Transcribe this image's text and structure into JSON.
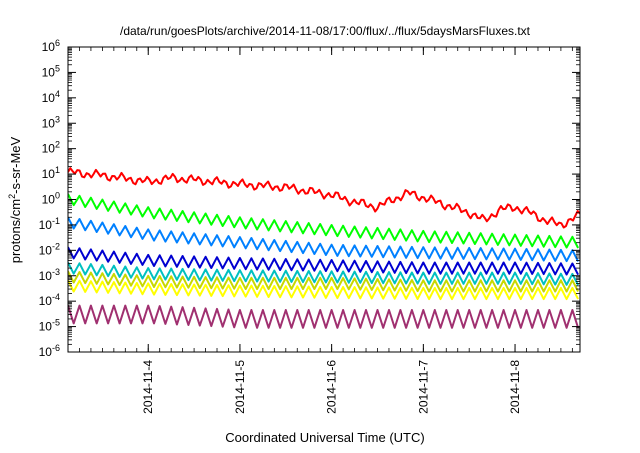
{
  "chart_data": {
    "type": "line",
    "title": "/data/run/goesPlots/archive/2014-11-08/17:00/flux/../flux/5daysMarsFluxes.txt",
    "xlabel": "Coordinated Universal Time (UTC)",
    "ylabel": {
      "pre": "protons/cm",
      "sup": "2",
      "post": "-s-sr-MeV"
    },
    "y_scale": "log",
    "ylim": [
      1e-06,
      1000000.0
    ],
    "xlim": [
      "2014-11-03T03:00",
      "2014-11-08T17:00"
    ],
    "y_ticks": [
      {
        "value": 1e-06,
        "base": "10",
        "exp": "-6"
      },
      {
        "value": 1e-05,
        "base": "10",
        "exp": "-5"
      },
      {
        "value": 0.0001,
        "base": "10",
        "exp": "-4"
      },
      {
        "value": 0.001,
        "base": "10",
        "exp": "-3"
      },
      {
        "value": 0.01,
        "base": "10",
        "exp": "-2"
      },
      {
        "value": 0.1,
        "base": "10",
        "exp": "-1"
      },
      {
        "value": 1,
        "base": "10",
        "exp": "0"
      },
      {
        "value": 10.0,
        "base": "10",
        "exp": "1"
      },
      {
        "value": 100.0,
        "base": "10",
        "exp": "2"
      },
      {
        "value": 1000.0,
        "base": "10",
        "exp": "3"
      },
      {
        "value": 10000.0,
        "base": "10",
        "exp": "4"
      },
      {
        "value": 100000.0,
        "base": "10",
        "exp": "5"
      },
      {
        "value": 1000000.0,
        "base": "10",
        "exp": "6"
      }
    ],
    "x_ticks": [
      {
        "date": "2014-11-04T00:00",
        "label": "2014-11-4"
      },
      {
        "date": "2014-11-05T00:00",
        "label": "2014-11-5"
      },
      {
        "date": "2014-11-06T00:00",
        "label": "2014-11-6"
      },
      {
        "date": "2014-11-07T00:00",
        "label": "2014-11-7"
      },
      {
        "date": "2014-11-08T00:00",
        "label": "2014-11-8"
      }
    ],
    "series": [
      {
        "color": "#ff0000",
        "style": "smooth",
        "points": [
          [
            "2014-11-03T03:00",
            12
          ],
          [
            "2014-11-03T12:00",
            9
          ],
          [
            "2014-11-04T00:00",
            5
          ],
          [
            "2014-11-04T06:00",
            7
          ],
          [
            "2014-11-04T12:00",
            6
          ],
          [
            "2014-11-05T00:00",
            4
          ],
          [
            "2014-11-05T12:00",
            3
          ],
          [
            "2014-11-06T00:00",
            1.5
          ],
          [
            "2014-11-06T06:00",
            0.8
          ],
          [
            "2014-11-06T12:00",
            0.5
          ],
          [
            "2014-11-06T16:00",
            1
          ],
          [
            "2014-11-06T20:00",
            1.8
          ],
          [
            "2014-11-07T00:00",
            1.2
          ],
          [
            "2014-11-07T06:00",
            0.6
          ],
          [
            "2014-11-07T12:00",
            0.3
          ],
          [
            "2014-11-07T16:00",
            0.15
          ],
          [
            "2014-11-07T20:00",
            0.4
          ],
          [
            "2014-11-08T00:00",
            0.5
          ],
          [
            "2014-11-08T04:00",
            0.3
          ],
          [
            "2014-11-08T08:00",
            0.15
          ],
          [
            "2014-11-08T12:00",
            0.1
          ],
          [
            "2014-11-08T17:00",
            0.25
          ]
        ]
      },
      {
        "color": "#00ff00",
        "style": "sawtooth",
        "points": [
          [
            "2014-11-03T03:00",
            1.0
          ],
          [
            "2014-11-04T00:00",
            0.3
          ],
          [
            "2014-11-05T00:00",
            0.12
          ],
          [
            "2014-11-06T00:00",
            0.06
          ],
          [
            "2014-11-07T00:00",
            0.035
          ],
          [
            "2014-11-08T00:00",
            0.025
          ],
          [
            "2014-11-08T17:00",
            0.02
          ]
        ]
      },
      {
        "color": "#0080ff",
        "style": "sawtooth",
        "points": [
          [
            "2014-11-03T03:00",
            0.12
          ],
          [
            "2014-11-04T00:00",
            0.04
          ],
          [
            "2014-11-05T00:00",
            0.02
          ],
          [
            "2014-11-06T00:00",
            0.01
          ],
          [
            "2014-11-07T00:00",
            0.008
          ],
          [
            "2014-11-08T00:00",
            0.007
          ],
          [
            "2014-11-08T17:00",
            0.006
          ]
        ]
      },
      {
        "color": "#0000d0",
        "style": "sawtooth",
        "points": [
          [
            "2014-11-03T03:00",
            0.008
          ],
          [
            "2014-11-04T00:00",
            0.004
          ],
          [
            "2014-11-05T00:00",
            0.003
          ],
          [
            "2014-11-06T00:00",
            0.0025
          ],
          [
            "2014-11-07T00:00",
            0.002
          ],
          [
            "2014-11-08T00:00",
            0.002
          ],
          [
            "2014-11-08T17:00",
            0.0018
          ]
        ]
      },
      {
        "color": "#00c0c0",
        "style": "sawtooth",
        "points": [
          [
            "2014-11-03T03:00",
            0.002
          ],
          [
            "2014-11-04T00:00",
            0.0012
          ],
          [
            "2014-11-05T00:00",
            0.001
          ],
          [
            "2014-11-06T00:00",
            0.0009
          ],
          [
            "2014-11-07T00:00",
            0.0008
          ],
          [
            "2014-11-08T00:00",
            0.0008
          ],
          [
            "2014-11-08T17:00",
            0.0007
          ]
        ]
      },
      {
        "color": "#c8d800",
        "style": "sawtooth",
        "points": [
          [
            "2014-11-03T03:00",
            0.0009
          ],
          [
            "2014-11-04T00:00",
            0.0006
          ],
          [
            "2014-11-05T00:00",
            0.0005
          ],
          [
            "2014-11-06T00:00",
            0.0005
          ],
          [
            "2014-11-07T00:00",
            0.0004
          ],
          [
            "2014-11-08T00:00",
            0.0004
          ],
          [
            "2014-11-08T17:00",
            0.0004
          ]
        ]
      },
      {
        "color": "#ffff00",
        "style": "sawtooth",
        "points": [
          [
            "2014-11-03T03:00",
            0.0004
          ],
          [
            "2014-11-04T00:00",
            0.0003
          ],
          [
            "2014-11-05T00:00",
            0.00025
          ],
          [
            "2014-11-06T00:00",
            0.00022
          ],
          [
            "2014-11-07T00:00",
            0.0002
          ],
          [
            "2014-11-08T00:00",
            0.0002
          ],
          [
            "2014-11-08T17:00",
            0.0002
          ]
        ]
      },
      {
        "color": "#a03070",
        "style": "sawtooth",
        "points": [
          [
            "2014-11-03T03:00",
            3e-05
          ],
          [
            "2014-11-04T00:00",
            3e-05
          ],
          [
            "2014-11-05T00:00",
            2e-05
          ],
          [
            "2014-11-06T00:00",
            2e-05
          ],
          [
            "2014-11-07T00:00",
            2e-05
          ],
          [
            "2014-11-08T00:00",
            2e-05
          ],
          [
            "2014-11-08T17:00",
            2e-05
          ]
        ]
      }
    ]
  }
}
